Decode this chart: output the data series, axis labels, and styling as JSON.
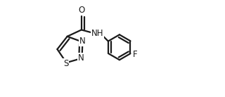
{
  "bg_color": "#ffffff",
  "line_color": "#1a1a1a",
  "line_width": 1.6,
  "font_size": 8.5,
  "figsize": [
    3.2,
    1.38
  ],
  "dpi": 100,
  "xlim": [
    0.0,
    1.0
  ],
  "ylim": [
    0.1,
    0.9
  ]
}
